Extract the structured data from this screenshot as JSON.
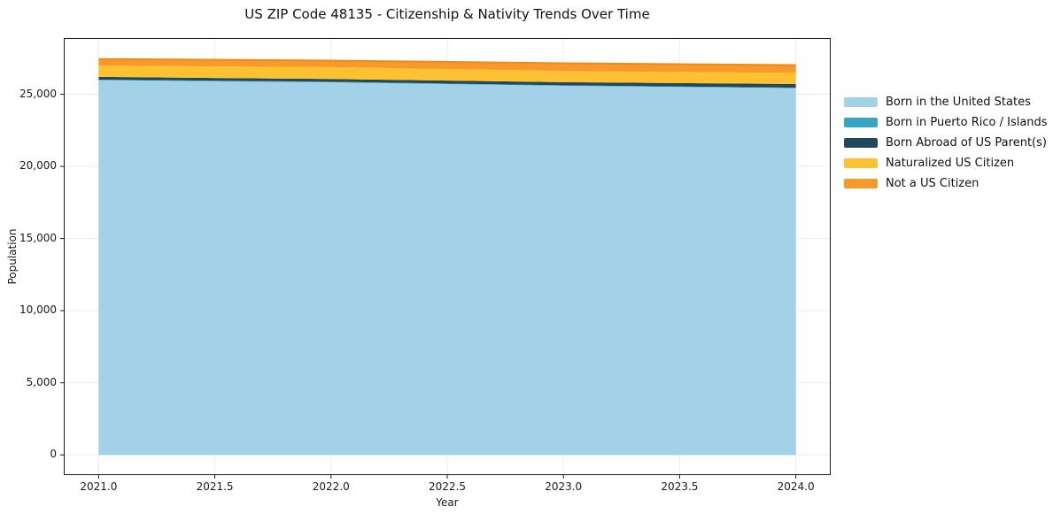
{
  "title": "US ZIP Code 48135 - Citizenship & Nativity Trends Over Time",
  "axes": {
    "xlabel": "Year",
    "ylabel": "Population",
    "x_ticks": [
      "2021.0",
      "2021.5",
      "2022.0",
      "2022.5",
      "2023.0",
      "2023.5",
      "2024.0"
    ],
    "y_ticks": [
      "0",
      "5,000",
      "10,000",
      "15,000",
      "20,000",
      "25,000"
    ]
  },
  "legend": {
    "position": "right",
    "entries": [
      {
        "label": "Born in the United States",
        "color": "#a3d2e8"
      },
      {
        "label": "Born in Puerto Rico / Islands",
        "color": "#3aa5c2"
      },
      {
        "label": "Born Abroad of US Parent(s)",
        "color": "#21485c"
      },
      {
        "label": "Naturalized US Citizen",
        "color": "#fdc131"
      },
      {
        "label": "Not a US Citizen",
        "color": "#f8992b"
      }
    ]
  },
  "chart_data": {
    "type": "area",
    "stacked": true,
    "title": "US ZIP Code 48135 - Citizenship & Nativity Trends Over Time",
    "xlabel": "Year",
    "ylabel": "Population",
    "x": [
      2021,
      2022,
      2023,
      2024
    ],
    "series": [
      {
        "name": "Born in the United States",
        "color": "#a3d2e8",
        "values": [
          25980,
          25830,
          25590,
          25430
        ]
      },
      {
        "name": "Born in Puerto Rico / Islands",
        "color": "#3aa5c2",
        "values": [
          40,
          40,
          35,
          30
        ]
      },
      {
        "name": "Born Abroad of US Parent(s)",
        "color": "#21485c",
        "values": [
          190,
          190,
          215,
          250
        ]
      },
      {
        "name": "Naturalized US Citizen",
        "color": "#fdc131",
        "values": [
          780,
          825,
          775,
          775
        ]
      },
      {
        "name": "Not a US Citizen",
        "color": "#f8992b",
        "values": [
          455,
          450,
          535,
          540
        ]
      }
    ],
    "totals": [
      27445,
      27335,
      27150,
      27025
    ],
    "xlim": [
      2020.85,
      2024.15
    ],
    "ylim": [
      -1400,
      28900
    ],
    "x_tick_values": [
      2021.0,
      2021.5,
      2022.0,
      2022.5,
      2023.0,
      2023.5,
      2024.0
    ],
    "y_tick_values": [
      0,
      5000,
      10000,
      15000,
      20000,
      25000
    ],
    "grid": true,
    "grid_color": "#ececec",
    "spine_color": "#1a1a1a",
    "top_edge_color": "#ef8b12",
    "legend_position": "right"
  }
}
